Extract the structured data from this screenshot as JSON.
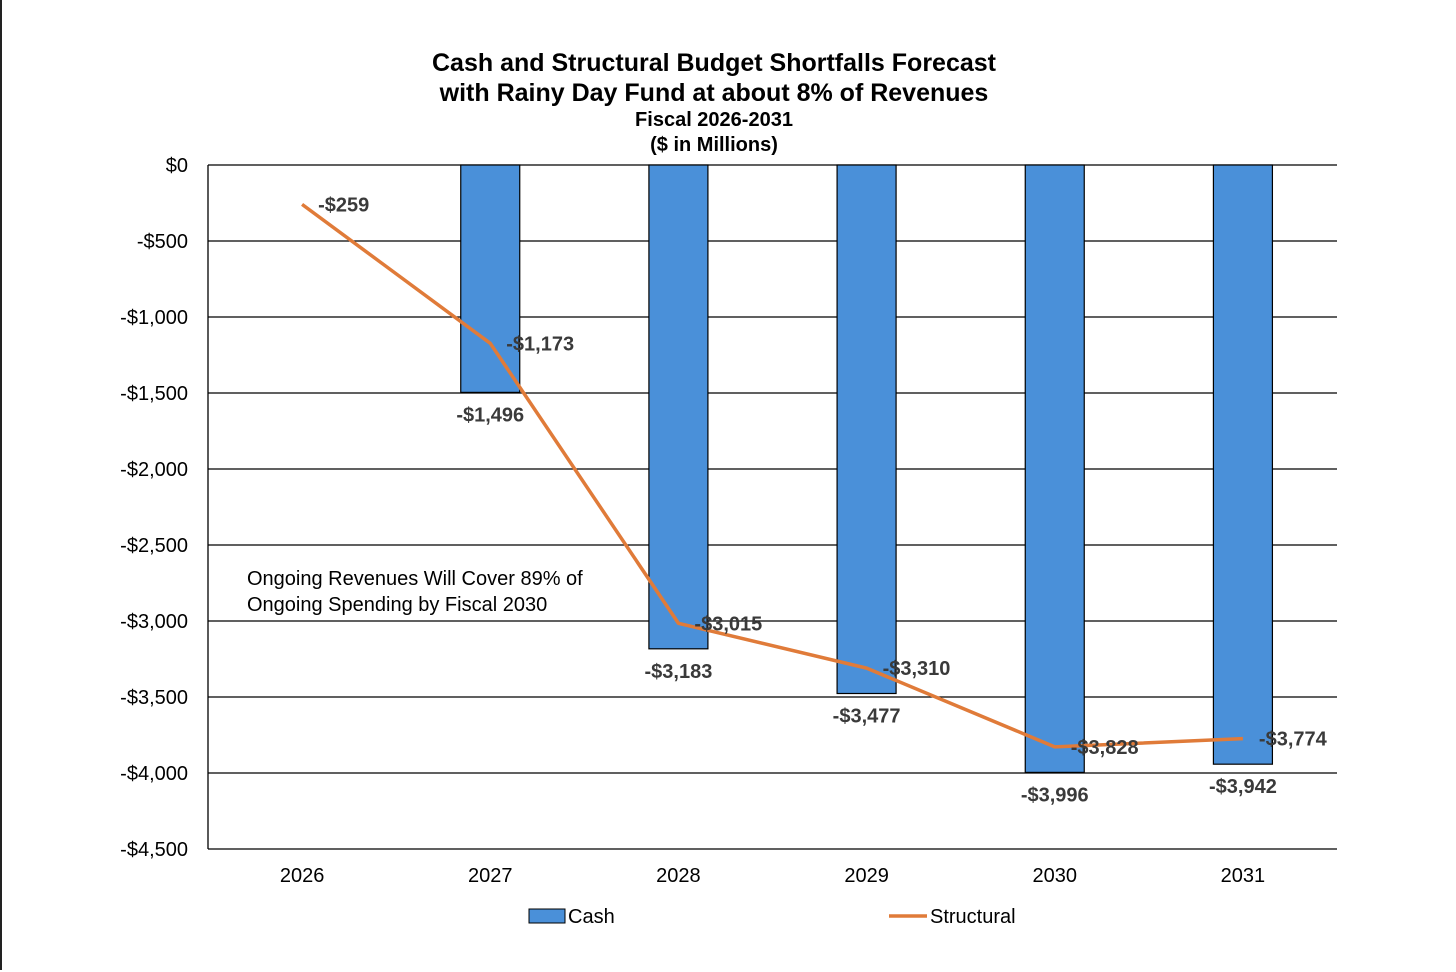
{
  "chart_data": {
    "type": "bar",
    "title": "Cash and Structural Budget Shortfalls Forecast",
    "title_line2": "with Rainy Day Fund at about 8% of Revenues",
    "subtitle": "Fiscal 2026-2031",
    "subtitle_line2": "($ in Millions)",
    "categories": [
      "2026",
      "2027",
      "2028",
      "2029",
      "2030",
      "2031"
    ],
    "ylim": [
      -4500,
      0
    ],
    "yticks": [
      0,
      -500,
      -1000,
      -1500,
      -2000,
      -2500,
      -3000,
      -3500,
      -4000,
      -4500
    ],
    "ytick_labels": [
      "$0",
      "-$500",
      "-$1,000",
      "-$1,500",
      "-$2,000",
      "-$2,500",
      "-$3,000",
      "-$3,500",
      "-$4,000",
      "-$4,500"
    ],
    "grid": true,
    "legend_position": "bottom",
    "series": [
      {
        "name": "Cash",
        "kind": "bar",
        "color": "#4A90D9",
        "values": [
          null,
          -1496,
          -3183,
          -3477,
          -3996,
          -3942
        ],
        "labels": [
          "",
          "-$1,496",
          "-$3,183",
          "-$3,477",
          "-$3,996",
          "-$3,942"
        ]
      },
      {
        "name": "Structural",
        "kind": "line",
        "color": "#E07B39",
        "values": [
          -259,
          -1173,
          -3015,
          -3310,
          -3828,
          -3774
        ],
        "labels": [
          "-$259",
          "-$1,173",
          "-$3,015",
          "-$3,310",
          "-$3,828",
          "-$3,774"
        ]
      }
    ],
    "annotation": {
      "line1": "Ongoing Revenues Will Cover 89% of",
      "line2": "Ongoing Spending by Fiscal 2030"
    }
  }
}
